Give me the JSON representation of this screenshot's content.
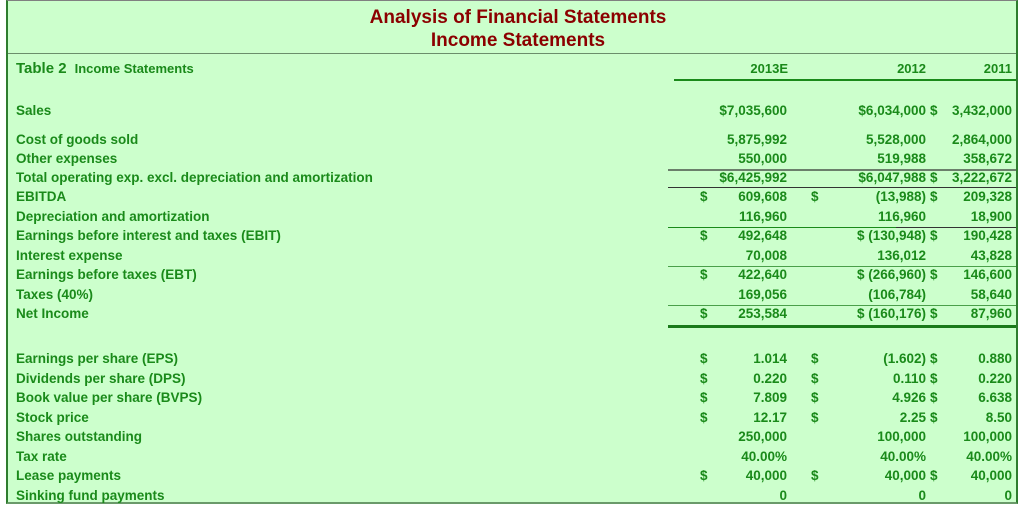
{
  "title": {
    "line1": "Analysis of Financial Statements",
    "line2": "Income Statements"
  },
  "table_label": {
    "number": "Table 2",
    "name": "Income Statements"
  },
  "columns": [
    "2013E",
    "2012",
    "2011"
  ],
  "rows": [
    {
      "label": "Sales",
      "values": [
        {
          "d": "",
          "v": "$7,035,600"
        },
        {
          "d": "",
          "v": "$6,034,000"
        },
        {
          "d": "$",
          "v": "3,432,000"
        }
      ]
    },
    {
      "label": "Cost of goods sold",
      "values": [
        {
          "d": "",
          "v": "5,875,992"
        },
        {
          "d": "",
          "v": "5,528,000"
        },
        {
          "d": "",
          "v": "2,864,000"
        }
      ]
    },
    {
      "label": "Other expenses",
      "values": [
        {
          "d": "",
          "v": "550,000"
        },
        {
          "d": "",
          "v": "519,988"
        },
        {
          "d": "",
          "v": "358,672"
        }
      ]
    },
    {
      "label": "Total operating exp. excl. depreciation and amortization",
      "values": [
        {
          "d": "",
          "v": "$6,425,992"
        },
        {
          "d": "",
          "v": "$6,047,988"
        },
        {
          "d": "$",
          "v": "3,222,672"
        }
      ]
    },
    {
      "label": "EBITDA",
      "values": [
        {
          "d": "$",
          "v": "609,608"
        },
        {
          "d": "$",
          "v": "(13,988)"
        },
        {
          "d": "$",
          "v": "209,328"
        }
      ]
    },
    {
      "label": "Depreciation and amortization",
      "values": [
        {
          "d": "",
          "v": "116,960"
        },
        {
          "d": "",
          "v": "116,960"
        },
        {
          "d": "",
          "v": "18,900"
        }
      ]
    },
    {
      "label": "Earnings before interest and taxes (EBIT)",
      "values": [
        {
          "d": "$",
          "v": "492,648"
        },
        {
          "d": "",
          "v": "$ (130,948)"
        },
        {
          "d": "$",
          "v": "190,428"
        }
      ]
    },
    {
      "label": "Interest expense",
      "values": [
        {
          "d": "",
          "v": "70,008"
        },
        {
          "d": "",
          "v": "136,012"
        },
        {
          "d": "",
          "v": "43,828"
        }
      ]
    },
    {
      "label": "Earnings before taxes (EBT)",
      "values": [
        {
          "d": "$",
          "v": "422,640"
        },
        {
          "d": "",
          "v": "$ (266,960)"
        },
        {
          "d": "$",
          "v": "146,600"
        }
      ]
    },
    {
      "label": "Taxes (40%)",
      "values": [
        {
          "d": "",
          "v": "169,056"
        },
        {
          "d": "",
          "v": "(106,784)"
        },
        {
          "d": "",
          "v": "58,640"
        }
      ]
    },
    {
      "label": "Net Income",
      "values": [
        {
          "d": "$",
          "v": "253,584"
        },
        {
          "d": "",
          "v": "$ (160,176)"
        },
        {
          "d": "$",
          "v": "87,960"
        }
      ]
    }
  ],
  "per_share_rows": [
    {
      "label": "Earnings per share (EPS)",
      "values": [
        {
          "d": "$",
          "v": "1.014"
        },
        {
          "d": "$",
          "v": "(1.602)"
        },
        {
          "d": "$",
          "v": "0.880"
        }
      ]
    },
    {
      "label": "Dividends per share (DPS)",
      "values": [
        {
          "d": "$",
          "v": "0.220"
        },
        {
          "d": "$",
          "v": "0.110"
        },
        {
          "d": "$",
          "v": "0.220"
        }
      ]
    },
    {
      "label": "Book value per share (BVPS)",
      "values": [
        {
          "d": "$",
          "v": "7.809"
        },
        {
          "d": "$",
          "v": "4.926"
        },
        {
          "d": "$",
          "v": "6.638"
        }
      ]
    },
    {
      "label": "Stock price",
      "values": [
        {
          "d": "$",
          "v": "12.17"
        },
        {
          "d": "$",
          "v": "2.25"
        },
        {
          "d": "$",
          "v": "8.50"
        }
      ]
    },
    {
      "label": "Shares outstanding",
      "values": [
        {
          "d": "",
          "v": "250,000"
        },
        {
          "d": "",
          "v": "100,000"
        },
        {
          "d": "",
          "v": "100,000"
        }
      ]
    },
    {
      "label": "Tax rate",
      "values": [
        {
          "d": "",
          "v": "40.00%"
        },
        {
          "d": "",
          "v": "40.00%"
        },
        {
          "d": "",
          "v": "40.00%"
        }
      ]
    },
    {
      "label": "Lease payments",
      "values": [
        {
          "d": "$",
          "v": "40,000"
        },
        {
          "d": "$",
          "v": "40,000"
        },
        {
          "d": "$",
          "v": "40,000"
        }
      ]
    },
    {
      "label": "Sinking fund payments",
      "values": [
        {
          "d": "",
          "v": "0"
        },
        {
          "d": "",
          "v": "0"
        },
        {
          "d": "",
          "v": "0"
        }
      ]
    }
  ],
  "colors": {
    "background": "#ccffcc",
    "text": "#1a8a1a",
    "title": "#8b0000"
  }
}
